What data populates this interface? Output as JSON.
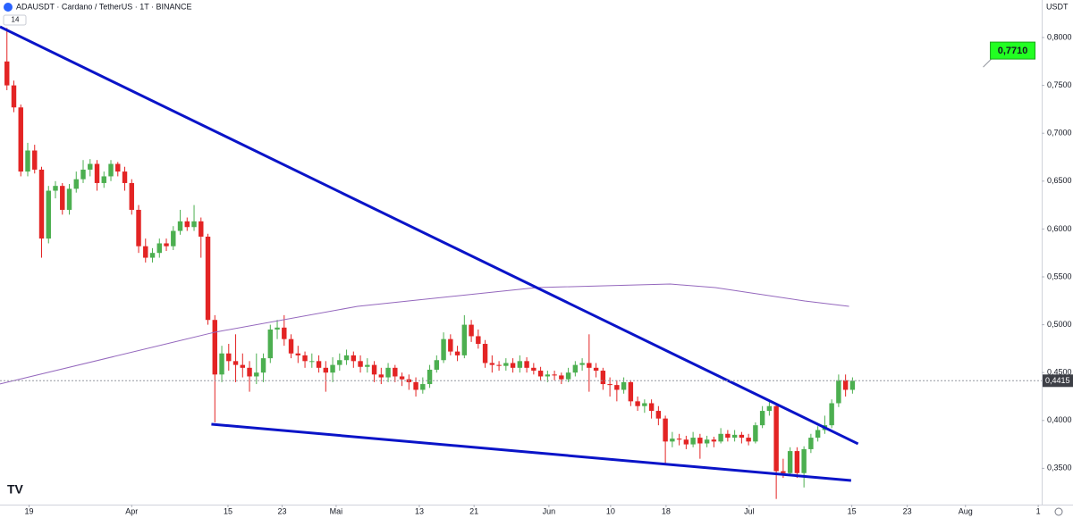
{
  "chart_data": {
    "type": "candlestick",
    "title": "ADAUSDT · Cardano / TetherUS · 1T · BINANCE",
    "indicator_badge": "14",
    "y_axis_label": "USDT",
    "up_color": "#4caf50",
    "down_color": "#e32424",
    "candles": [
      [
        0.775,
        0.81,
        0.745,
        0.75
      ],
      [
        0.75,
        0.755,
        0.722,
        0.727
      ],
      [
        0.727,
        0.73,
        0.655,
        0.66
      ],
      [
        0.66,
        0.69,
        0.655,
        0.682
      ],
      [
        0.682,
        0.688,
        0.658,
        0.662
      ],
      [
        0.662,
        0.665,
        0.57,
        0.59
      ],
      [
        0.59,
        0.645,
        0.585,
        0.64
      ],
      [
        0.64,
        0.65,
        0.632,
        0.645
      ],
      [
        0.645,
        0.648,
        0.615,
        0.62
      ],
      [
        0.62,
        0.647,
        0.615,
        0.642
      ],
      [
        0.642,
        0.66,
        0.638,
        0.652
      ],
      [
        0.652,
        0.672,
        0.648,
        0.662
      ],
      [
        0.662,
        0.673,
        0.655,
        0.668
      ],
      [
        0.668,
        0.672,
        0.64,
        0.648
      ],
      [
        0.648,
        0.66,
        0.643,
        0.655
      ],
      [
        0.655,
        0.672,
        0.65,
        0.668
      ],
      [
        0.668,
        0.67,
        0.655,
        0.66
      ],
      [
        0.66,
        0.665,
        0.64,
        0.648
      ],
      [
        0.648,
        0.652,
        0.615,
        0.62
      ],
      [
        0.62,
        0.625,
        0.575,
        0.582
      ],
      [
        0.582,
        0.59,
        0.565,
        0.57
      ],
      [
        0.57,
        0.58,
        0.565,
        0.575
      ],
      [
        0.575,
        0.59,
        0.57,
        0.585
      ],
      [
        0.585,
        0.59,
        0.577,
        0.582
      ],
      [
        0.582,
        0.603,
        0.578,
        0.598
      ],
      [
        0.598,
        0.62,
        0.594,
        0.608
      ],
      [
        0.608,
        0.612,
        0.598,
        0.602
      ],
      [
        0.602,
        0.625,
        0.598,
        0.608
      ],
      [
        0.608,
        0.612,
        0.57,
        0.592
      ],
      [
        0.592,
        0.595,
        0.5,
        0.505
      ],
      [
        0.505,
        0.51,
        0.398,
        0.448
      ],
      [
        0.448,
        0.478,
        0.44,
        0.47
      ],
      [
        0.47,
        0.48,
        0.452,
        0.462
      ],
      [
        0.462,
        0.49,
        0.44,
        0.458
      ],
      [
        0.458,
        0.47,
        0.445,
        0.455
      ],
      [
        0.455,
        0.462,
        0.43,
        0.446
      ],
      [
        0.446,
        0.47,
        0.438,
        0.45
      ],
      [
        0.45,
        0.47,
        0.44,
        0.465
      ],
      [
        0.465,
        0.5,
        0.46,
        0.495
      ],
      [
        0.495,
        0.505,
        0.485,
        0.497
      ],
      [
        0.497,
        0.51,
        0.478,
        0.485
      ],
      [
        0.485,
        0.49,
        0.465,
        0.47
      ],
      [
        0.47,
        0.478,
        0.46,
        0.468
      ],
      [
        0.468,
        0.472,
        0.455,
        0.462
      ],
      [
        0.462,
        0.47,
        0.455,
        0.462
      ],
      [
        0.462,
        0.468,
        0.45,
        0.455
      ],
      [
        0.455,
        0.462,
        0.43,
        0.45
      ],
      [
        0.45,
        0.466,
        0.44,
        0.458
      ],
      [
        0.458,
        0.47,
        0.452,
        0.463
      ],
      [
        0.463,
        0.474,
        0.458,
        0.468
      ],
      [
        0.468,
        0.472,
        0.455,
        0.462
      ],
      [
        0.462,
        0.468,
        0.45,
        0.456
      ],
      [
        0.456,
        0.465,
        0.45,
        0.458
      ],
      [
        0.458,
        0.462,
        0.44,
        0.448
      ],
      [
        0.448,
        0.455,
        0.438,
        0.445
      ],
      [
        0.445,
        0.46,
        0.44,
        0.455
      ],
      [
        0.455,
        0.458,
        0.44,
        0.446
      ],
      [
        0.446,
        0.45,
        0.436,
        0.443
      ],
      [
        0.443,
        0.448,
        0.432,
        0.44
      ],
      [
        0.44,
        0.445,
        0.425,
        0.432
      ],
      [
        0.432,
        0.445,
        0.428,
        0.438
      ],
      [
        0.438,
        0.458,
        0.434,
        0.453
      ],
      [
        0.453,
        0.468,
        0.45,
        0.463
      ],
      [
        0.463,
        0.492,
        0.46,
        0.485
      ],
      [
        0.485,
        0.49,
        0.468,
        0.472
      ],
      [
        0.472,
        0.478,
        0.462,
        0.468
      ],
      [
        0.468,
        0.51,
        0.465,
        0.5
      ],
      [
        0.5,
        0.505,
        0.482,
        0.488
      ],
      [
        0.488,
        0.495,
        0.475,
        0.48
      ],
      [
        0.48,
        0.484,
        0.455,
        0.46
      ],
      [
        0.46,
        0.468,
        0.45,
        0.458
      ],
      [
        0.458,
        0.462,
        0.452,
        0.457
      ],
      [
        0.457,
        0.465,
        0.452,
        0.46
      ],
      [
        0.46,
        0.465,
        0.45,
        0.455
      ],
      [
        0.455,
        0.468,
        0.45,
        0.462
      ],
      [
        0.462,
        0.466,
        0.45,
        0.455
      ],
      [
        0.455,
        0.46,
        0.448,
        0.452
      ],
      [
        0.452,
        0.456,
        0.442,
        0.446
      ],
      [
        0.446,
        0.452,
        0.44,
        0.448
      ],
      [
        0.448,
        0.452,
        0.442,
        0.447
      ],
      [
        0.447,
        0.45,
        0.438,
        0.443
      ],
      [
        0.443,
        0.455,
        0.44,
        0.45
      ],
      [
        0.45,
        0.462,
        0.446,
        0.458
      ],
      [
        0.458,
        0.465,
        0.452,
        0.46
      ],
      [
        0.46,
        0.49,
        0.43,
        0.455
      ],
      [
        0.455,
        0.46,
        0.445,
        0.452
      ],
      [
        0.452,
        0.455,
        0.432,
        0.438
      ],
      [
        0.438,
        0.445,
        0.425,
        0.437
      ],
      [
        0.437,
        0.442,
        0.42,
        0.432
      ],
      [
        0.432,
        0.445,
        0.428,
        0.44
      ],
      [
        0.44,
        0.442,
        0.415,
        0.42
      ],
      [
        0.42,
        0.425,
        0.41,
        0.415
      ],
      [
        0.415,
        0.422,
        0.408,
        0.418
      ],
      [
        0.418,
        0.422,
        0.402,
        0.41
      ],
      [
        0.41,
        0.415,
        0.395,
        0.402
      ],
      [
        0.402,
        0.405,
        0.355,
        0.378
      ],
      [
        0.378,
        0.388,
        0.372,
        0.381
      ],
      [
        0.381,
        0.386,
        0.374,
        0.38
      ],
      [
        0.38,
        0.384,
        0.37,
        0.375
      ],
      [
        0.375,
        0.388,
        0.372,
        0.382
      ],
      [
        0.382,
        0.386,
        0.36,
        0.376
      ],
      [
        0.376,
        0.384,
        0.372,
        0.38
      ],
      [
        0.38,
        0.383,
        0.372,
        0.378
      ],
      [
        0.378,
        0.392,
        0.376,
        0.386
      ],
      [
        0.386,
        0.39,
        0.378,
        0.382
      ],
      [
        0.382,
        0.39,
        0.378,
        0.385
      ],
      [
        0.385,
        0.388,
        0.376,
        0.382
      ],
      [
        0.382,
        0.386,
        0.374,
        0.378
      ],
      [
        0.378,
        0.398,
        0.376,
        0.395
      ],
      [
        0.395,
        0.415,
        0.392,
        0.41
      ],
      [
        0.41,
        0.42,
        0.405,
        0.415
      ],
      [
        0.415,
        0.418,
        0.318,
        0.347
      ],
      [
        0.347,
        0.36,
        0.34,
        0.345
      ],
      [
        0.345,
        0.372,
        0.342,
        0.368
      ],
      [
        0.368,
        0.372,
        0.34,
        0.345
      ],
      [
        0.345,
        0.373,
        0.33,
        0.37
      ],
      [
        0.37,
        0.386,
        0.366,
        0.382
      ],
      [
        0.382,
        0.394,
        0.378,
        0.39
      ],
      [
        0.39,
        0.405,
        0.386,
        0.395
      ],
      [
        0.395,
        0.422,
        0.392,
        0.418
      ],
      [
        0.418,
        0.448,
        0.414,
        0.442
      ],
      [
        0.442,
        0.448,
        0.425,
        0.432
      ],
      [
        0.432,
        0.445,
        0.428,
        0.4415
      ]
    ],
    "series": [
      {
        "color": "#9467bd",
        "x": [
          -1,
          30,
          50.6,
          76.4,
          95.7,
          102.2,
          115.1,
          121.5
        ],
        "values": [
          0.4381,
          0.4922,
          0.5192,
          0.5388,
          0.5425,
          0.5388,
          0.5248,
          0.5192
        ]
      }
    ],
    "drawings": [
      {
        "color": "#0a14c8",
        "x": [
          -1,
          122.8
        ],
        "y": [
          0.8112,
          0.3756
        ]
      },
      {
        "color": "#0a14c8",
        "x": [
          29.5,
          121.8
        ],
        "y": [
          0.3961,
          0.3373
        ]
      }
    ],
    "price_tag": {
      "value": 0.4415,
      "label": "0,4415"
    },
    "annotation": {
      "value": 0.771,
      "label": "0,7710",
      "x": 141.5
    },
    "xlim": [
      -1,
      149.3
    ],
    "ylim": [
      0.3121,
      0.8392
    ],
    "xticks": [
      {
        "value": 3.2,
        "label": "19"
      },
      {
        "value": 18,
        "label": "Apr"
      },
      {
        "value": 31.9,
        "label": "15"
      },
      {
        "value": 39.7,
        "label": "23"
      },
      {
        "value": 47.5,
        "label": "Mai"
      },
      {
        "value": 59.5,
        "label": "13"
      },
      {
        "value": 67.4,
        "label": "21"
      },
      {
        "value": 78.2,
        "label": "Jun"
      },
      {
        "value": 87.1,
        "label": "10"
      },
      {
        "value": 95.1,
        "label": "18"
      },
      {
        "value": 107.1,
        "label": "Jul"
      },
      {
        "value": 121.9,
        "label": "15"
      },
      {
        "value": 129.9,
        "label": "23"
      },
      {
        "value": 138.3,
        "label": "Aug"
      },
      {
        "value": 148.8,
        "label": "1"
      }
    ],
    "yticks": [
      {
        "value": 0.8,
        "label": "0,8000"
      },
      {
        "value": 0.75,
        "label": "0,7500"
      },
      {
        "value": 0.7,
        "label": "0,7000"
      },
      {
        "value": 0.65,
        "label": "0,6500"
      },
      {
        "value": 0.6,
        "label": "0,6000"
      },
      {
        "value": 0.55,
        "label": "0,5500"
      },
      {
        "value": 0.5,
        "label": "0,5000"
      },
      {
        "value": 0.45,
        "label": "0,4500"
      },
      {
        "value": 0.4,
        "label": "0,4000"
      },
      {
        "value": 0.35,
        "label": "0,3500"
      }
    ],
    "grid": false
  }
}
